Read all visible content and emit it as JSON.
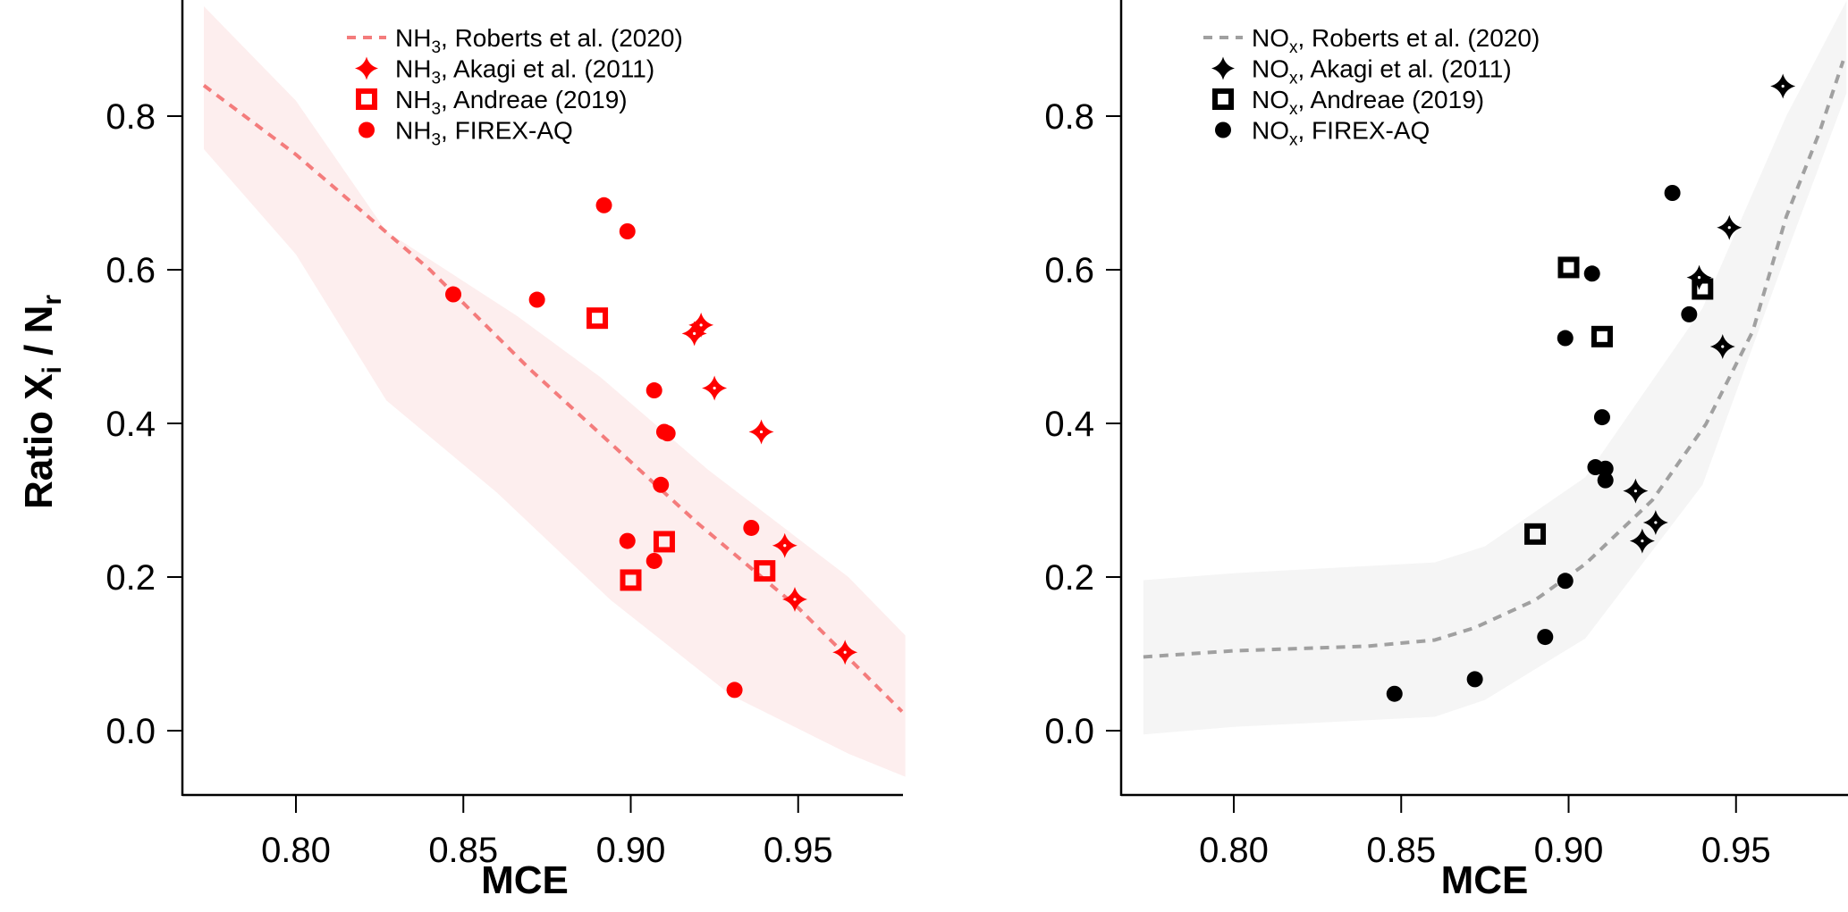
{
  "chart_data": [
    {
      "type": "scatter",
      "panel": "left",
      "xlabel": "MCE",
      "ylabel": {
        "main": "Ratio X",
        "sub1": "i",
        "mid": " / N",
        "sub2": "r"
      },
      "xlim": [
        0.766,
        0.982
      ],
      "ylim": [
        -0.083,
        0.952
      ],
      "xticks": [
        0.8,
        0.85,
        0.9,
        0.95
      ],
      "xtick_labels": [
        "0.80",
        "0.85",
        "0.90",
        "0.95"
      ],
      "yticks": [
        0.0,
        0.2,
        0.4,
        0.6,
        0.8
      ],
      "ytick_labels": [
        "0.0",
        "0.2",
        "0.4",
        "0.6",
        "0.8"
      ],
      "legend_placement": "top-center",
      "colors": {
        "marker": "#ff0000",
        "line": "#f47c7c",
        "band": "#fdeeee"
      },
      "legend": [
        {
          "species": "NH",
          "sub": "3",
          "text": ", Roberts et al. (2020)",
          "symbol": "dashed-line"
        },
        {
          "species": "NH",
          "sub": "3",
          "text": ", Akagi et al. (2011)",
          "symbol": "star"
        },
        {
          "species": "NH",
          "sub": "3",
          "text": ", Andreae (2019)",
          "symbol": "square"
        },
        {
          "species": "NH",
          "sub": "3",
          "text": ", FIREX-AQ",
          "symbol": "circle"
        }
      ],
      "roberts_line": {
        "x": [
          0.7725,
          0.8,
          0.84,
          0.87,
          0.9,
          0.92,
          0.95,
          0.981
        ],
        "y": [
          0.84,
          0.75,
          0.6,
          0.47,
          0.35,
          0.27,
          0.16,
          0.025
        ]
      },
      "roberts_band": {
        "x": [
          0.7725,
          0.8,
          0.827,
          0.866,
          0.891,
          0.923,
          0.965,
          0.982
        ],
        "upper": [
          0.943,
          0.82,
          0.65,
          0.54,
          0.46,
          0.34,
          0.2,
          0.124
        ],
        "lower_x": [
          0.7725,
          0.8,
          0.827,
          0.86,
          0.894,
          0.93,
          0.965,
          0.982
        ],
        "lower": [
          0.757,
          0.62,
          0.43,
          0.31,
          0.17,
          0.046,
          -0.03,
          -0.06
        ]
      },
      "akagi": {
        "x": [
          0.921,
          0.919,
          0.925,
          0.939,
          0.946,
          0.949,
          0.964
        ],
        "y": [
          0.528,
          0.517,
          0.446,
          0.389,
          0.241,
          0.171,
          0.102
        ]
      },
      "andreae": {
        "x": [
          0.89,
          0.91,
          0.9,
          0.94
        ],
        "y": [
          0.537,
          0.246,
          0.196,
          0.208
        ]
      },
      "firex": {
        "x": [
          0.847,
          0.872,
          0.892,
          0.899,
          0.907,
          0.91,
          0.911,
          0.909,
          0.899,
          0.907,
          0.936,
          0.931
        ],
        "y": [
          0.568,
          0.561,
          0.684,
          0.65,
          0.443,
          0.389,
          0.387,
          0.32,
          0.247,
          0.221,
          0.264,
          0.053
        ]
      }
    },
    {
      "type": "scatter",
      "panel": "right",
      "xlabel": "MCE",
      "xlim": [
        0.766,
        0.983
      ],
      "ylim": [
        -0.083,
        0.952
      ],
      "xticks": [
        0.8,
        0.85,
        0.9,
        0.95
      ],
      "xtick_labels": [
        "0.80",
        "0.85",
        "0.90",
        "0.95"
      ],
      "yticks": [
        0.0,
        0.2,
        0.4,
        0.6,
        0.8
      ],
      "ytick_labels": [
        "0.0",
        "0.2",
        "0.4",
        "0.6",
        "0.8"
      ],
      "legend_placement": "top-left",
      "colors": {
        "marker": "#000000",
        "line": "#a0a0a0",
        "band": "#f5f5f5"
      },
      "legend": [
        {
          "species": "NO",
          "sub": "x",
          "text": ", Roberts et al. (2020)",
          "symbol": "dashed-line"
        },
        {
          "species": "NO",
          "sub": "x",
          "text": ", Akagi et al. (2011)",
          "symbol": "star"
        },
        {
          "species": "NO",
          "sub": "x",
          "text": ", Andreae (2019)",
          "symbol": "square"
        },
        {
          "species": "NO",
          "sub": "x",
          "text": ", FIREX-AQ",
          "symbol": "circle"
        }
      ],
      "roberts_line": {
        "x": [
          0.773,
          0.8,
          0.84,
          0.86,
          0.872,
          0.89,
          0.905,
          0.925,
          0.941,
          0.955,
          0.965,
          0.975,
          0.982
        ],
        "y": [
          0.096,
          0.104,
          0.11,
          0.118,
          0.134,
          0.17,
          0.217,
          0.3,
          0.399,
          0.52,
          0.669,
          0.78,
          0.872
        ]
      },
      "roberts_band": {
        "x": [
          0.773,
          0.8,
          0.86,
          0.875,
          0.905,
          0.94,
          0.965,
          0.983
        ],
        "upper": [
          0.196,
          0.205,
          0.219,
          0.24,
          0.33,
          0.55,
          0.8,
          0.95
        ],
        "lower_x": [
          0.773,
          0.8,
          0.86,
          0.875,
          0.905,
          0.94,
          0.965,
          0.983
        ],
        "lower": [
          -0.005,
          0.005,
          0.018,
          0.04,
          0.12,
          0.32,
          0.62,
          0.83
        ]
      },
      "akagi": {
        "x": [
          0.964,
          0.948,
          0.939,
          0.946,
          0.92,
          0.922,
          0.926
        ],
        "y": [
          0.839,
          0.655,
          0.59,
          0.5,
          0.312,
          0.247,
          0.271
        ]
      },
      "andreae": {
        "x": [
          0.9,
          0.94,
          0.91,
          0.89
        ],
        "y": [
          0.603,
          0.575,
          0.513,
          0.256
        ]
      },
      "firex": {
        "x": [
          0.931,
          0.907,
          0.936,
          0.899,
          0.91,
          0.908,
          0.911,
          0.911,
          0.899,
          0.893,
          0.872,
          0.848
        ],
        "y": [
          0.7,
          0.595,
          0.542,
          0.511,
          0.408,
          0.343,
          0.341,
          0.326,
          0.195,
          0.122,
          0.067,
          0.048
        ]
      }
    }
  ]
}
